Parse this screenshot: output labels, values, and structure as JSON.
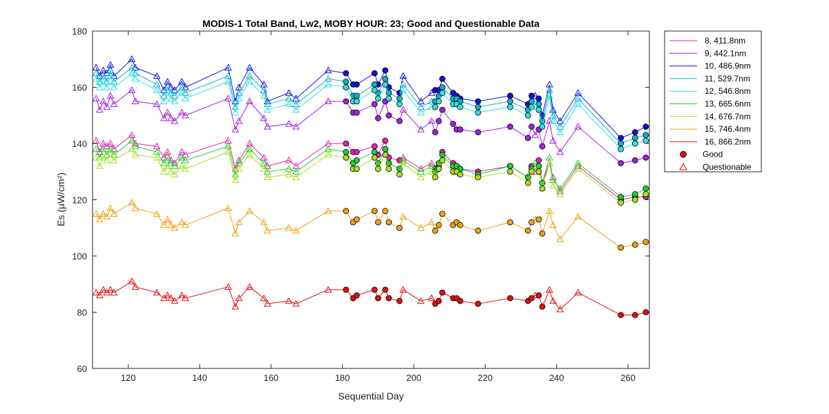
{
  "chart_data": {
    "type": "line",
    "title": "MODIS-1 Total Band,  Lw2, MOBY HOUR: 23;  Good and Questionable Data",
    "xlabel": "Sequential Day",
    "ylabel": "Es (µW/cm²)",
    "xlim": [
      110,
      266
    ],
    "ylim": [
      60,
      180
    ],
    "xticks": [
      120,
      140,
      160,
      180,
      200,
      220,
      240,
      260
    ],
    "yticks": [
      60,
      80,
      100,
      120,
      140,
      160,
      180
    ],
    "grid": false,
    "legend_position": "outside-right",
    "x": [
      111,
      112,
      113,
      114,
      115,
      116,
      121,
      122,
      128,
      130,
      131,
      132,
      133,
      135,
      136,
      148,
      150,
      151,
      154,
      158,
      159,
      165,
      167,
      176,
      181,
      183,
      184,
      189,
      190,
      192,
      193,
      196,
      197,
      202,
      205,
      206,
      207,
      208,
      211,
      212,
      213,
      218,
      227,
      232,
      233,
      234,
      235,
      236,
      238,
      239,
      241,
      246,
      258,
      262,
      265
    ],
    "quality": [
      "Q",
      "Q",
      "Q",
      "Q",
      "Q",
      "Q",
      "Q",
      "Q",
      "Q",
      "Q",
      "Q",
      "Q",
      "Q",
      "Q",
      "Q",
      "Q",
      "Q",
      "Q",
      "Q",
      "Q",
      "Q",
      "Q",
      "Q",
      "Q",
      "G",
      "G",
      "G",
      "G",
      "G",
      "G",
      "G",
      "G",
      "Q",
      "Q",
      "Q",
      "G",
      "G",
      "G",
      "G",
      "G",
      "G",
      "G",
      "G",
      "G",
      "G",
      "Q",
      "G",
      "G",
      "Q",
      "Q",
      "Q",
      "Q",
      "G",
      "G",
      "G"
    ],
    "series": [
      {
        "name": "8, 411.8nm",
        "color": "#e020b0",
        "values": [
          141,
          137,
          140,
          139,
          140,
          138,
          143,
          140,
          139,
          135,
          137,
          134,
          133,
          137,
          136,
          141,
          131,
          134,
          140,
          135,
          132,
          134,
          132,
          140,
          140,
          137,
          137,
          139,
          136,
          141,
          135,
          134,
          135,
          131,
          133,
          131,
          132,
          137,
          133,
          132,
          131,
          130,
          132,
          128,
          132,
          130,
          134,
          126,
          133,
          128,
          123,
          132,
          120,
          121,
          121
        ]
      },
      {
        "name": "9, 442.1nm",
        "color": "#a020e0",
        "values": [
          156,
          152,
          155,
          153,
          157,
          154,
          159,
          155,
          154,
          149,
          151,
          149,
          148,
          151,
          150,
          156,
          145,
          148,
          155,
          149,
          146,
          147,
          146,
          155,
          155,
          151,
          151,
          154,
          149,
          155,
          150,
          148,
          152,
          145,
          148,
          144,
          148,
          152,
          147,
          145,
          145,
          144,
          146,
          142,
          146,
          143,
          145,
          139,
          148,
          141,
          137,
          146,
          133,
          134,
          135
        ]
      },
      {
        "name": "10, 486.9nm",
        "color": "#1010e0",
        "values": [
          167,
          164,
          166,
          165,
          168,
          164,
          170,
          167,
          164,
          159,
          162,
          160,
          159,
          162,
          160,
          167,
          155,
          160,
          167,
          161,
          155,
          158,
          156,
          166,
          165,
          161,
          161,
          165,
          161,
          166,
          160,
          158,
          164,
          155,
          158,
          159,
          159,
          163,
          158,
          157,
          156,
          155,
          157,
          154,
          157,
          157,
          156,
          150,
          161,
          152,
          148,
          158,
          142,
          144,
          146
        ]
      },
      {
        "name": "11, 529.7nm",
        "color": "#10b0c8",
        "values": [
          165,
          162,
          164,
          162,
          166,
          162,
          167,
          165,
          161,
          157,
          160,
          158,
          157,
          160,
          158,
          164,
          153,
          158,
          164,
          159,
          154,
          156,
          154,
          163,
          162,
          157,
          157,
          161,
          158,
          163,
          158,
          156,
          161,
          153,
          155,
          155,
          157,
          160,
          156,
          156,
          155,
          153,
          155,
          152,
          155,
          155,
          154,
          148,
          159,
          150,
          146,
          156,
          140,
          142,
          143
        ]
      },
      {
        "name": "12, 546.8nm",
        "color": "#30e0e0",
        "values": [
          163,
          160,
          162,
          160,
          164,
          160,
          165,
          163,
          159,
          155,
          158,
          156,
          155,
          158,
          156,
          162,
          151,
          156,
          162,
          157,
          152,
          154,
          152,
          161,
          160,
          155,
          155,
          159,
          156,
          161,
          156,
          154,
          159,
          151,
          153,
          153,
          155,
          158,
          154,
          154,
          153,
          151,
          153,
          150,
          153,
          153,
          152,
          146,
          157,
          148,
          144,
          154,
          138,
          140,
          141
        ]
      },
      {
        "name": "13, 665.6nm",
        "color": "#20d030",
        "values": [
          138,
          135,
          138,
          136,
          138,
          136,
          141,
          139,
          137,
          133,
          135,
          133,
          132,
          135,
          134,
          139,
          129,
          133,
          138,
          133,
          130,
          131,
          130,
          138,
          137,
          133,
          134,
          137,
          133,
          138,
          133,
          131,
          134,
          130,
          132,
          130,
          133,
          136,
          132,
          132,
          131,
          129,
          132,
          128,
          131,
          133,
          132,
          126,
          135,
          127,
          124,
          133,
          121,
          122,
          124
        ]
      },
      {
        "name": "14, 676.7nm",
        "color": "#a8e020",
        "values": [
          135,
          132,
          135,
          134,
          136,
          134,
          138,
          136,
          135,
          130,
          132,
          130,
          129,
          132,
          131,
          137,
          127,
          131,
          136,
          131,
          128,
          129,
          128,
          136,
          135,
          131,
          131,
          135,
          131,
          136,
          131,
          129,
          133,
          128,
          130,
          128,
          131,
          134,
          130,
          130,
          129,
          128,
          130,
          126,
          130,
          131,
          130,
          124,
          133,
          125,
          122,
          131,
          119,
          120,
          122
        ]
      },
      {
        "name": "15, 746.4nm",
        "color": "#f0a010",
        "values": [
          115,
          113,
          115,
          114,
          117,
          115,
          119,
          117,
          115,
          111,
          113,
          111,
          110,
          112,
          111,
          117,
          108,
          112,
          116,
          112,
          109,
          110,
          109,
          116,
          116,
          112,
          113,
          116,
          112,
          116,
          112,
          110,
          114,
          110,
          112,
          109,
          111,
          115,
          111,
          112,
          111,
          109,
          112,
          109,
          112,
          113,
          113,
          108,
          116,
          111,
          106,
          114,
          103,
          104,
          105
        ]
      },
      {
        "name": "16, 866.2nm",
        "color": "#e01010",
        "values": [
          87,
          86,
          88,
          87,
          88,
          87,
          91,
          89,
          87,
          85,
          86,
          85,
          84,
          86,
          85,
          89,
          82,
          85,
          89,
          85,
          83,
          84,
          83,
          88,
          88,
          85,
          86,
          88,
          85,
          88,
          85,
          84,
          88,
          84,
          85,
          83,
          84,
          87,
          85,
          85,
          84,
          83,
          85,
          84,
          85,
          86,
          86,
          82,
          88,
          84,
          81,
          87,
          79,
          79,
          80
        ]
      }
    ],
    "legend": {
      "markers": [
        {
          "label": "Good",
          "shape": "circle",
          "fill": "#e01010",
          "stroke": "#000000"
        },
        {
          "label": "Questionable",
          "shape": "triangle",
          "fill": "none",
          "stroke": "#e01010"
        }
      ]
    }
  }
}
